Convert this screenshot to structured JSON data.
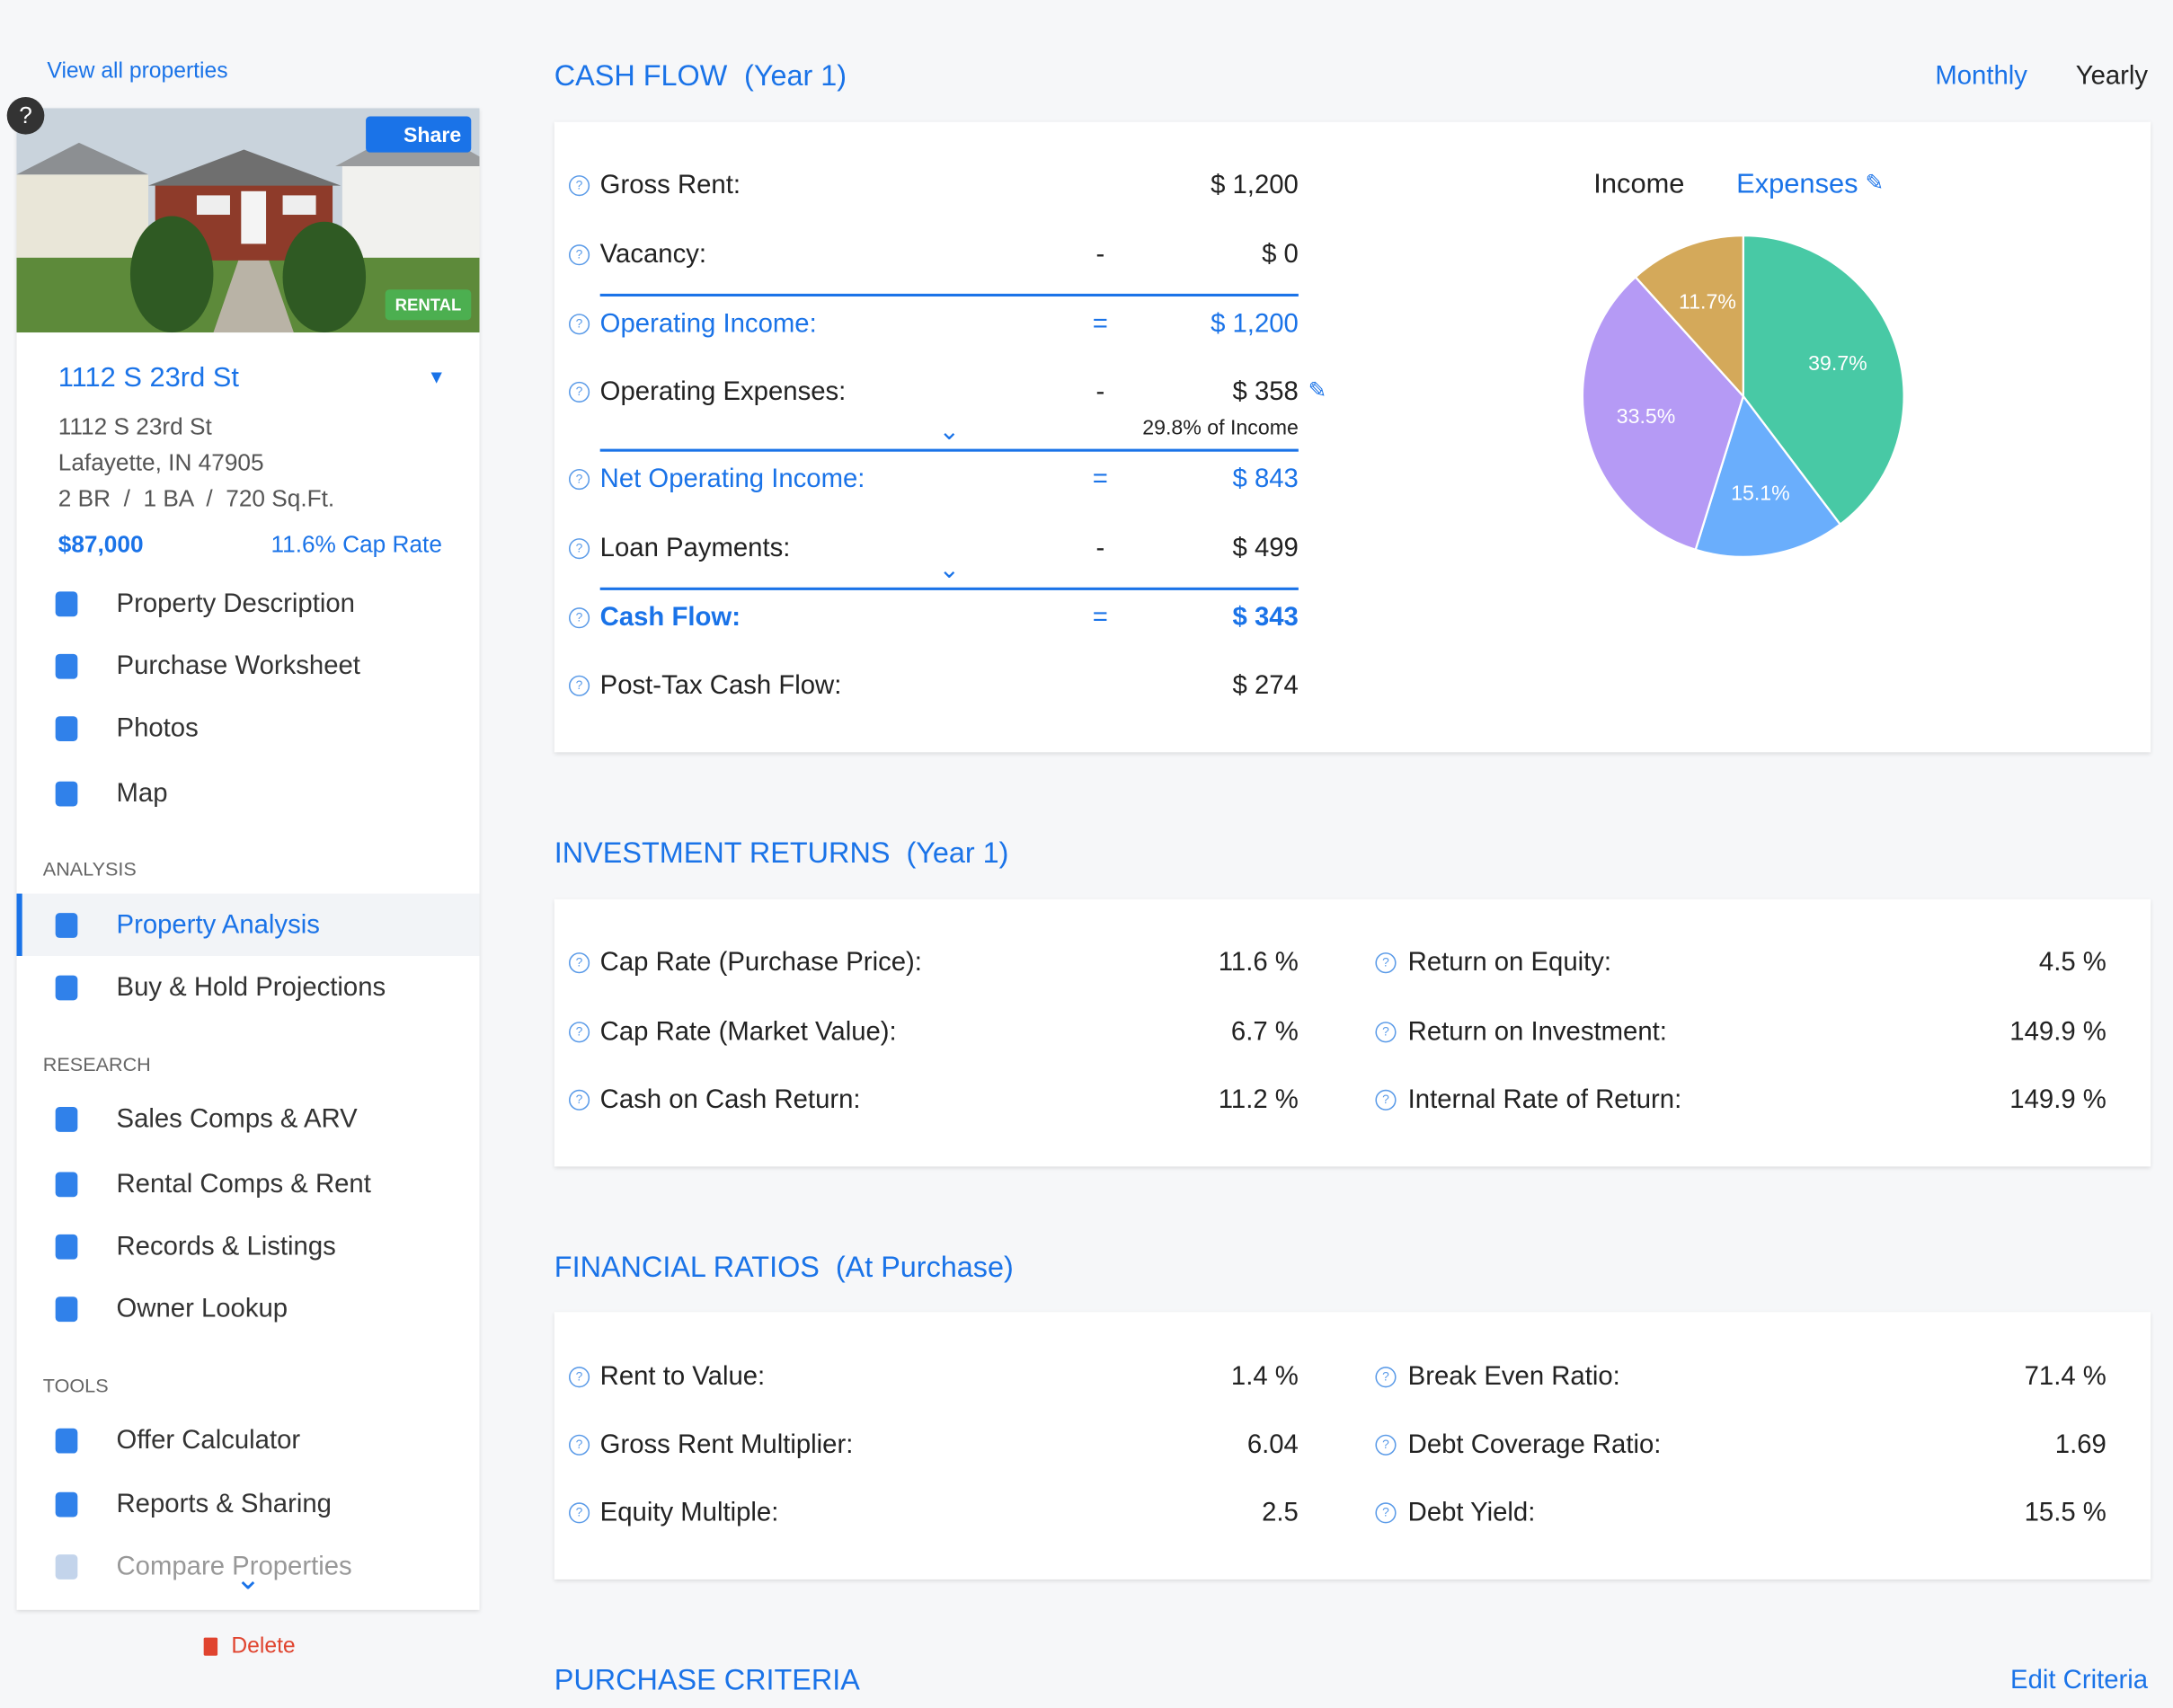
{
  "sidebar": {
    "back_link": "View all properties",
    "share": "Share",
    "badge": "RENTAL",
    "property_name": "1112 S 23rd St",
    "address_line1": "1112 S 23rd St",
    "address_line2": "Lafayette, IN 47905",
    "details": "2 BR  /  1 BA  /  720 Sq.Ft.",
    "price": "$87,000",
    "cap_rate": "11.6% Cap Rate",
    "nav": [
      "Property Description",
      "Purchase Worksheet",
      "Photos",
      "Map"
    ],
    "sections": [
      {
        "heading": "ANALYSIS",
        "items": [
          "Property Analysis",
          "Buy & Hold Projections"
        ]
      },
      {
        "heading": "RESEARCH",
        "items": [
          "Sales Comps & ARV",
          "Rental Comps & Rent",
          "Records & Listings",
          "Owner Lookup"
        ]
      },
      {
        "heading": "TOOLS",
        "items": [
          "Offer Calculator",
          "Reports & Sharing",
          "Compare Properties"
        ]
      }
    ],
    "delete": "Delete"
  },
  "cash_flow": {
    "title": "CASH FLOW",
    "period": "(Year 1)",
    "toggle": [
      "Monthly",
      "Yearly"
    ],
    "rows": [
      {
        "label": "Gross Rent:",
        "value": "$ 1,200"
      },
      {
        "label": "Vacancy:",
        "op": "-",
        "value": "$ 0"
      },
      {
        "label": "Operating Income:",
        "op": "=",
        "value": "$ 1,200",
        "highlight": true
      },
      {
        "label": "Operating Expenses:",
        "op": "-",
        "value": "$ 358",
        "note": "29.8% of Income"
      },
      {
        "label": "Net Operating Income:",
        "op": "=",
        "value": "$ 843",
        "highlight": true
      },
      {
        "label": "Loan Payments:",
        "op": "-",
        "value": "$ 499"
      },
      {
        "label": "Cash Flow:",
        "op": "=",
        "value": "$ 343",
        "highlight": true,
        "bold": true
      },
      {
        "label": "Post-Tax Cash Flow:",
        "value": "$ 274"
      }
    ]
  },
  "chart_data": {
    "type": "pie",
    "tabs": [
      "Income",
      "Expenses"
    ],
    "values": [
      39.7,
      15.1,
      33.5,
      11.7
    ],
    "value_labels": [
      "39.7%",
      "15.1%",
      "33.5%",
      "11.7%"
    ],
    "colors": [
      "#48c9a5",
      "#6aaefc",
      "#b59af5",
      "#d4a95a"
    ]
  },
  "investment_returns": {
    "title": "INVESTMENT RETURNS",
    "period": "(Year 1)",
    "left": [
      {
        "label": "Cap Rate (Purchase Price):",
        "value": "11.6 %"
      },
      {
        "label": "Cap Rate (Market Value):",
        "value": "6.7 %"
      },
      {
        "label": "Cash on Cash Return:",
        "value": "11.2 %"
      }
    ],
    "right": [
      {
        "label": "Return on Equity:",
        "value": "4.5 %"
      },
      {
        "label": "Return on Investment:",
        "value": "149.9 %"
      },
      {
        "label": "Internal Rate of Return:",
        "value": "149.9 %"
      }
    ]
  },
  "financial_ratios": {
    "title": "FINANCIAL RATIOS",
    "period": "(At Purchase)",
    "left": [
      {
        "label": "Rent to Value:",
        "value": "1.4 %"
      },
      {
        "label": "Gross Rent Multiplier:",
        "value": "6.04"
      },
      {
        "label": "Equity Multiple:",
        "value": "2.5"
      }
    ],
    "right": [
      {
        "label": "Break Even Ratio:",
        "value": "71.4 %"
      },
      {
        "label": "Debt Coverage Ratio:",
        "value": "1.69"
      },
      {
        "label": "Debt Yield:",
        "value": "15.5 %"
      }
    ]
  },
  "purchase_criteria": {
    "title": "PURCHASE CRITERIA",
    "edit": "Edit Criteria"
  }
}
